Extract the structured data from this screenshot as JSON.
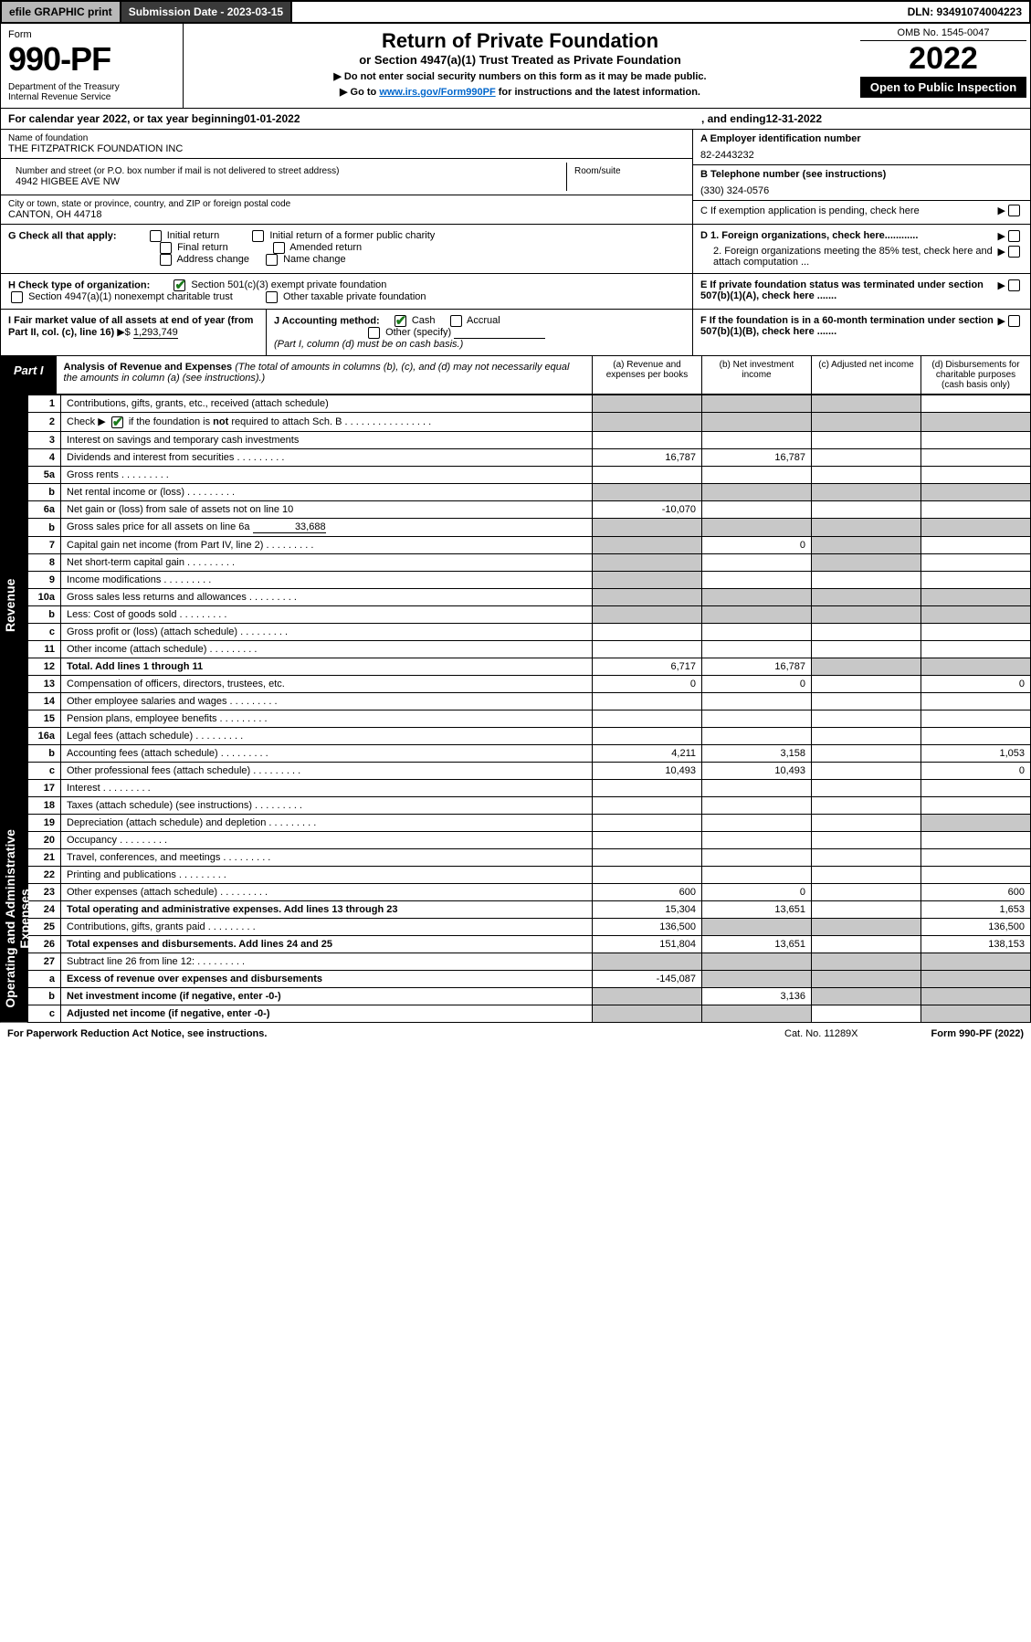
{
  "topbar": {
    "efile": "efile GRAPHIC print",
    "submission_label": "Submission Date - 2023-03-15",
    "dln": "DLN: 93491074004223"
  },
  "header": {
    "form_label": "Form",
    "form_number": "990-PF",
    "dept": "Department of the Treasury\nInternal Revenue Service",
    "title": "Return of Private Foundation",
    "subtitle": "or Section 4947(a)(1) Trust Treated as Private Foundation",
    "note1": "▶ Do not enter social security numbers on this form as it may be made public.",
    "note2_pre": "▶ Go to ",
    "note2_link": "www.irs.gov/Form990PF",
    "note2_post": " for instructions and the latest information.",
    "omb": "OMB No. 1545-0047",
    "year": "2022",
    "inspect": "Open to Public Inspection"
  },
  "calyear": {
    "pre": "For calendar year 2022, or tax year beginning ",
    "begin": "01-01-2022",
    "mid": ", and ending ",
    "end": "12-31-2022"
  },
  "name": {
    "lbl": "Name of foundation",
    "val": "THE FITZPATRICK FOUNDATION INC"
  },
  "ein": {
    "lbl": "A Employer identification number",
    "val": "82-2443232"
  },
  "addr": {
    "lbl": "Number and street (or P.O. box number if mail is not delivered to street address)",
    "val": "4942 HIGBEE AVE NW",
    "room_lbl": "Room/suite"
  },
  "phone": {
    "lbl": "B Telephone number (see instructions)",
    "val": "(330) 324-0576"
  },
  "city": {
    "lbl": "City or town, state or province, country, and ZIP or foreign postal code",
    "val": "CANTON, OH  44718"
  },
  "c_exempt": "C If exemption application is pending, check here",
  "g": {
    "lbl": "G Check all that apply:",
    "o1": "Initial return",
    "o2": "Initial return of a former public charity",
    "o3": "Final return",
    "o4": "Amended return",
    "o5": "Address change",
    "o6": "Name change"
  },
  "d": {
    "d1": "D 1. Foreign organizations, check here............",
    "d2": "2. Foreign organizations meeting the 85% test, check here and attach computation ..."
  },
  "h": {
    "lbl": "H Check type of organization:",
    "o1": "Section 501(c)(3) exempt private foundation",
    "o2": "Section 4947(a)(1) nonexempt charitable trust",
    "o3": "Other taxable private foundation"
  },
  "e": "E  If private foundation status was terminated under section 507(b)(1)(A), check here .......",
  "i": {
    "lbl": "I Fair market value of all assets at end of year (from Part II, col. (c), line 16)",
    "val": "1,293,749"
  },
  "j": {
    "lbl": "J Accounting method:",
    "o1": "Cash",
    "o2": "Accrual",
    "o3": "Other (specify)",
    "note": "(Part I, column (d) must be on cash basis.)"
  },
  "f": "F  If the foundation is in a 60-month termination under section 507(b)(1)(B), check here .......",
  "part1": {
    "tab": "Part I",
    "title": "Analysis of Revenue and Expenses",
    "sub": "(The total of amounts in columns (b), (c), and (d) may not necessarily equal the amounts in column (a) (see instructions).)",
    "ca": "(a)   Revenue and expenses per books",
    "cb": "(b)   Net investment income",
    "cc": "(c)   Adjusted net income",
    "cd": "(d)   Disbursements for charitable purposes (cash basis only)"
  },
  "side": {
    "rev": "Revenue",
    "exp": "Operating and Administrative Expenses"
  },
  "rows": [
    {
      "n": "1",
      "d": "Contributions, gifts, grants, etc., received (attach schedule)"
    },
    {
      "n": "2",
      "d": "Check ▶ ☑ if the foundation is not required to attach Sch. B",
      "checked": true
    },
    {
      "n": "3",
      "d": "Interest on savings and temporary cash investments"
    },
    {
      "n": "4",
      "d": "Dividends and interest from securities",
      "a": "16,787",
      "b": "16,787"
    },
    {
      "n": "5a",
      "d": "Gross rents"
    },
    {
      "n": "b",
      "d": "Net rental income or (loss)",
      "inline": true
    },
    {
      "n": "6a",
      "d": "Net gain or (loss) from sale of assets not on line 10",
      "a": "-10,070"
    },
    {
      "n": "b",
      "d": "Gross sales price for all assets on line 6a",
      "inline_val": "33,688"
    },
    {
      "n": "7",
      "d": "Capital gain net income (from Part IV, line 2)",
      "b": "0"
    },
    {
      "n": "8",
      "d": "Net short-term capital gain"
    },
    {
      "n": "9",
      "d": "Income modifications"
    },
    {
      "n": "10a",
      "d": "Gross sales less returns and allowances",
      "inline": true
    },
    {
      "n": "b",
      "d": "Less: Cost of goods sold",
      "inline": true
    },
    {
      "n": "c",
      "d": "Gross profit or (loss) (attach schedule)"
    },
    {
      "n": "11",
      "d": "Other income (attach schedule)"
    },
    {
      "n": "12",
      "d": "Total. Add lines 1 through 11",
      "a": "6,717",
      "b": "16,787",
      "bold": true
    },
    {
      "n": "13",
      "d": "Compensation of officers, directors, trustees, etc.",
      "a": "0",
      "b": "0",
      "dd": "0"
    },
    {
      "n": "14",
      "d": "Other employee salaries and wages"
    },
    {
      "n": "15",
      "d": "Pension plans, employee benefits"
    },
    {
      "n": "16a",
      "d": "Legal fees (attach schedule)"
    },
    {
      "n": "b",
      "d": "Accounting fees (attach schedule)",
      "a": "4,211",
      "b": "3,158",
      "dd": "1,053"
    },
    {
      "n": "c",
      "d": "Other professional fees (attach schedule)",
      "a": "10,493",
      "b": "10,493",
      "dd": "0"
    },
    {
      "n": "17",
      "d": "Interest"
    },
    {
      "n": "18",
      "d": "Taxes (attach schedule) (see instructions)"
    },
    {
      "n": "19",
      "d": "Depreciation (attach schedule) and depletion"
    },
    {
      "n": "20",
      "d": "Occupancy"
    },
    {
      "n": "21",
      "d": "Travel, conferences, and meetings"
    },
    {
      "n": "22",
      "d": "Printing and publications"
    },
    {
      "n": "23",
      "d": "Other expenses (attach schedule)",
      "a": "600",
      "b": "0",
      "dd": "600"
    },
    {
      "n": "24",
      "d": "Total operating and administrative expenses. Add lines 13 through 23",
      "a": "15,304",
      "b": "13,651",
      "dd": "1,653",
      "bold": true
    },
    {
      "n": "25",
      "d": "Contributions, gifts, grants paid",
      "a": "136,500",
      "dd": "136,500"
    },
    {
      "n": "26",
      "d": "Total expenses and disbursements. Add lines 24 and 25",
      "a": "151,804",
      "b": "13,651",
      "dd": "138,153",
      "bold": true
    },
    {
      "n": "27",
      "d": "Subtract line 26 from line 12:"
    },
    {
      "n": "a",
      "d": "Excess of revenue over expenses and disbursements",
      "a": "-145,087",
      "bold": true
    },
    {
      "n": "b",
      "d": "Net investment income (if negative, enter -0-)",
      "b": "3,136",
      "bold": true
    },
    {
      "n": "c",
      "d": "Adjusted net income (if negative, enter -0-)",
      "bold": true
    }
  ],
  "grey_cells": {
    "5b": [
      "a",
      "b",
      "c",
      "d"
    ],
    "6a": [
      "b",
      "c"
    ],
    "6b": [
      "a",
      "b",
      "c",
      "d"
    ],
    "7": [
      "a",
      "c"
    ],
    "8": [
      "a",
      "c"
    ],
    "9": [
      "a"
    ],
    "10a": [
      "a",
      "b",
      "c",
      "d"
    ],
    "10b": [
      "a",
      "b",
      "c",
      "d"
    ],
    "1": [
      "b",
      "c",
      "d"
    ],
    "2": [
      "a",
      "b",
      "c",
      "d"
    ],
    "12": [
      "c",
      "d"
    ],
    "19": [
      "d"
    ],
    "25": [
      "b",
      "c"
    ],
    "27": [
      "a",
      "b",
      "c",
      "d"
    ],
    "27a": [
      "b",
      "c",
      "d"
    ],
    "27b": [
      "a",
      "c",
      "d"
    ],
    "27c": [
      "a",
      "b",
      "d"
    ]
  },
  "footer": {
    "left": "For Paperwork Reduction Act Notice, see instructions.",
    "cat": "Cat. No. 11289X",
    "right": "Form 990-PF (2022)"
  }
}
